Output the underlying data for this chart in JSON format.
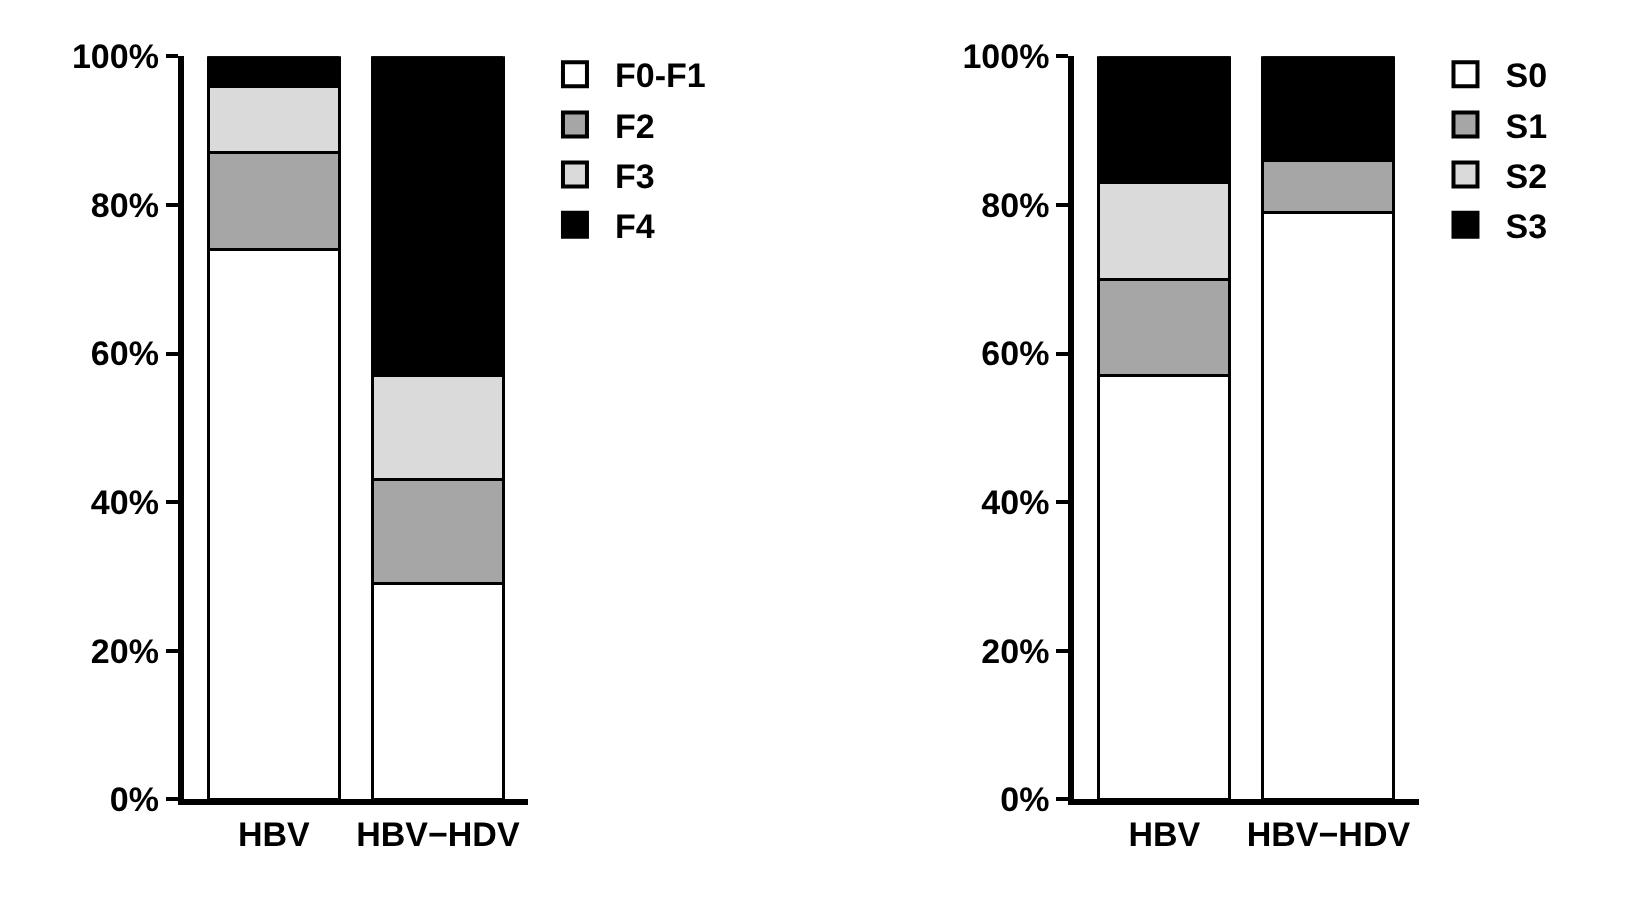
{
  "chart_data": [
    {
      "type": "bar",
      "stacked": true,
      "categories": [
        "HBV",
        "HBV−HDV"
      ],
      "ylim": [
        0,
        100
      ],
      "yticks": [
        {
          "value": 0,
          "label": "0%"
        },
        {
          "value": 20,
          "label": "20%"
        },
        {
          "value": 40,
          "label": "40%"
        },
        {
          "value": 60,
          "label": "60%"
        },
        {
          "value": 80,
          "label": "80%"
        },
        {
          "value": 100,
          "label": "100%"
        }
      ],
      "legend": "top right",
      "series": [
        {
          "name": "F0-F1",
          "color": "#ffffff",
          "values": [
            74,
            29
          ]
        },
        {
          "name": "F2",
          "color": "#a6a6a6",
          "values": [
            13,
            14
          ]
        },
        {
          "name": "F3",
          "color": "#dadada",
          "values": [
            9,
            14
          ]
        },
        {
          "name": "F4",
          "color": "#000000",
          "values": [
            4,
            43
          ]
        }
      ]
    },
    {
      "type": "bar",
      "stacked": true,
      "categories": [
        "HBV",
        "HBV−HDV"
      ],
      "ylim": [
        0,
        100
      ],
      "yticks": [
        {
          "value": 0,
          "label": "0%"
        },
        {
          "value": 20,
          "label": "20%"
        },
        {
          "value": 40,
          "label": "40%"
        },
        {
          "value": 60,
          "label": "60%"
        },
        {
          "value": 80,
          "label": "80%"
        },
        {
          "value": 100,
          "label": "100%"
        }
      ],
      "legend": "top right",
      "series": [
        {
          "name": "S0",
          "color": "#ffffff",
          "values": [
            57,
            79
          ]
        },
        {
          "name": "S1",
          "color": "#a6a6a6",
          "values": [
            13,
            7
          ]
        },
        {
          "name": "S2",
          "color": "#dadada",
          "values": [
            13,
            0
          ]
        },
        {
          "name": "S3",
          "color": "#000000",
          "values": [
            17,
            14
          ]
        }
      ]
    }
  ]
}
